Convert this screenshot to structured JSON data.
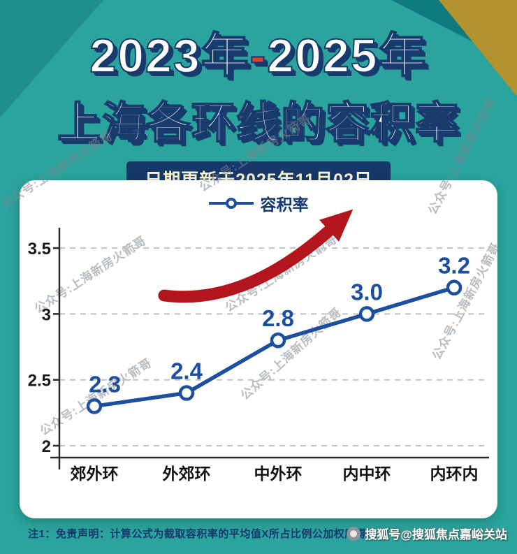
{
  "header": {
    "title_part1": "2023年",
    "title_dash": "-",
    "title_part2": "2025年",
    "title_line2": "上海各环线的容积率",
    "date_note": "日期更新于2025年11月02日"
  },
  "legend": {
    "label": "容积率"
  },
  "chart_data": {
    "type": "line",
    "series_name": "容积率",
    "categories": [
      "郊外环",
      "外郊环",
      "中外环",
      "内中环",
      "内环内"
    ],
    "values": [
      2.3,
      2.4,
      2.8,
      3.0,
      3.2
    ],
    "yticks": [
      2,
      2.5,
      3,
      3.5
    ],
    "ylim": [
      2,
      3.6
    ],
    "grid": "dashed-horizontal",
    "legend_position": "top-center",
    "line_color": "#1c4f9d",
    "marker": "open-circle",
    "annotation": "red-upward-trend-arrow"
  },
  "watermarks": {
    "diagonal_text": "公众号:上海新房火箭哥",
    "bottom_right": "搜狐号@搜狐焦点嘉峪关站"
  },
  "footer": {
    "note": "注1：免责声明：计算公式为截取容积率的平均值X所占比例公加权所得"
  },
  "colors": {
    "background_teal": "#2aa49d",
    "corner_teal_dark": "#0f7a80",
    "corner_teal_mid": "#1f8e8c",
    "corner_gold": "#b3932e",
    "title_text": "#ffffff",
    "title_extrude": "#183a6c",
    "title_dash_red": "#e23b30",
    "date_bar_bg": "#16386b",
    "date_bar_text": "#fbf2d2",
    "line_blue": "#1c4f9d",
    "arrow_red": "#b2151b",
    "axis_black": "#2b2b2b",
    "grid_gray": "#c3c3c3"
  }
}
